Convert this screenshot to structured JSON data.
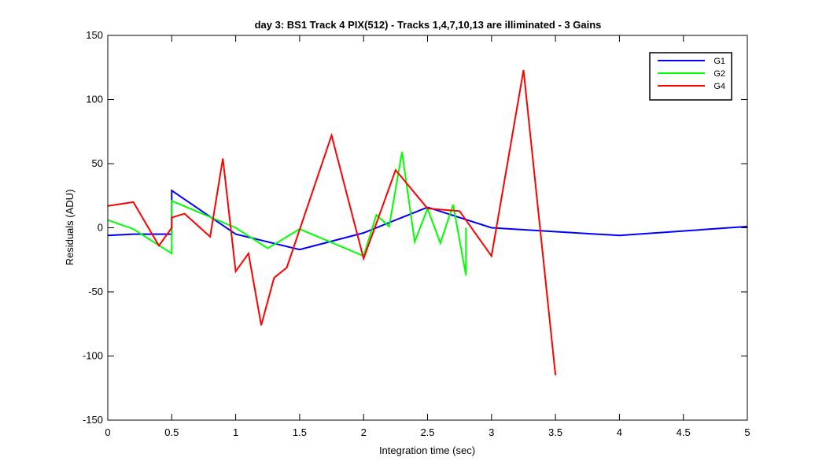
{
  "chart_data": {
    "type": "line",
    "title": "day 3: BS1  Track 4 PIX(512) - Tracks 1,4,7,10,13 are illiminated - 3 Gains",
    "xlabel": "Integration time (sec)",
    "ylabel": "Residuals (ADU)",
    "xlim": [
      0,
      5
    ],
    "ylim": [
      -150,
      150
    ],
    "xticks": [
      0,
      0.5,
      1,
      1.5,
      2,
      2.5,
      3,
      3.5,
      4,
      4.5,
      5
    ],
    "xtick_labels": [
      "0",
      "0.5",
      "1",
      "1.5",
      "2",
      "2.5",
      "3",
      "3.5",
      "4",
      "4.5",
      "5"
    ],
    "yticks": [
      -150,
      -100,
      -50,
      0,
      50,
      100,
      150
    ],
    "ytick_labels": [
      "-150",
      "-100",
      "-50",
      "0",
      "50",
      "100",
      "150"
    ],
    "grid": false,
    "legend_position": "top-right",
    "series": [
      {
        "name": "G1",
        "color": "#0000ff",
        "x": [
          0,
          0.2,
          0.5,
          0.5,
          1.0,
          1.5,
          2.0,
          2.5,
          3.0,
          4.0,
          5.0
        ],
        "y": [
          -6,
          -5,
          -5,
          29,
          -5,
          -17,
          -4,
          16,
          0,
          -6,
          1
        ]
      },
      {
        "name": "G2",
        "color": "#00ff00",
        "x": [
          0,
          0.2,
          0.5,
          0.5,
          1.0,
          1.25,
          1.5,
          2.0,
          2.1,
          2.2,
          2.3,
          2.4,
          2.5,
          2.6,
          2.7,
          2.8,
          2.8
        ],
        "y": [
          6,
          -1,
          -20,
          21,
          0,
          -16,
          -1,
          -22,
          10,
          1,
          59,
          -11,
          15,
          -12,
          18,
          -37,
          0
        ]
      },
      {
        "name": "G4",
        "color": "#ff0000",
        "x": [
          0,
          0.2,
          0.4,
          0.5,
          0.5,
          0.6,
          0.8,
          0.9,
          1.0,
          1.1,
          1.2,
          1.3,
          1.4,
          1.75,
          2.0,
          2.25,
          2.5,
          2.75,
          3.0,
          3.25,
          3.5
        ],
        "y": [
          17,
          20,
          -14,
          0,
          8,
          11,
          -7,
          54,
          -34,
          -20,
          -76,
          -39,
          -31,
          72,
          -24,
          45,
          15,
          13,
          -22,
          123,
          -115
        ]
      }
    ]
  }
}
